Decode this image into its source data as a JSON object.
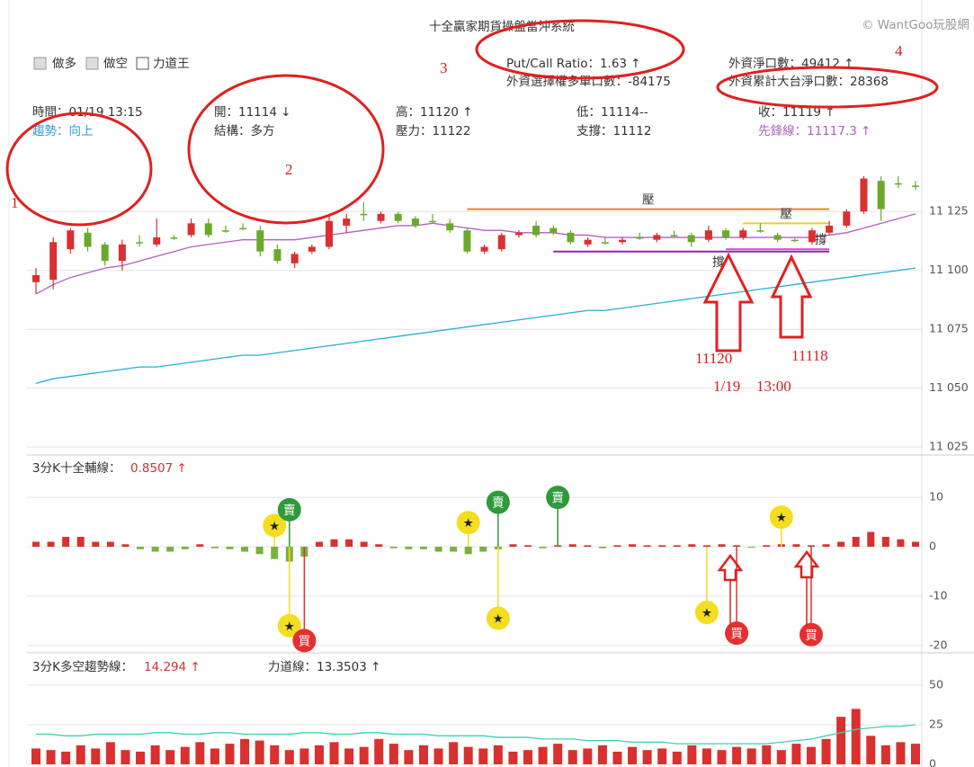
{
  "header": {
    "title": "十全贏家期貨操盤當沖系統",
    "watermark": "© WantGoo玩股網",
    "toggles": [
      "做多",
      "做空",
      "力道王"
    ],
    "put_call": "Put/Call Ratio：1.63 ↑",
    "fii_options": "外資選擇權多單口數：-84175",
    "fii_net": "外資淨口數：49412 ↑",
    "fii_big": "外資累計大台淨口數：28368",
    "row1": [
      "時間：01/19 13:15",
      "開：11114 ↓",
      "高：11120 ↑",
      "低：11114--",
      "收：11119 ↑"
    ],
    "row2": [
      "趨勢：向上",
      "結構：多方",
      "壓力：11122",
      "支撐：11112",
      "先鋒線：11117.3 ↑"
    ]
  },
  "annotations": [
    "1",
    "2",
    "3",
    "4",
    "11120",
    "11118",
    "1/19",
    "13:00"
  ],
  "chart_data": [
    {
      "type": "candlestick",
      "open": [
        11095,
        11096,
        11109,
        11116,
        11111,
        11104,
        11112,
        11111,
        11114,
        11115,
        11120,
        11117,
        11118,
        11117,
        11109,
        11103,
        11108,
        11110,
        11119,
        11124,
        11121,
        11124,
        11122,
        11121,
        11120,
        11117,
        11108,
        11109,
        11115,
        11119,
        11118,
        11116,
        11111,
        11112,
        11112,
        11114,
        11113,
        11115,
        11115,
        11113,
        11117,
        11114,
        11117,
        11115,
        11113,
        11112,
        11116,
        11119,
        11125,
        11138,
        11137,
        11136
      ],
      "high": [
        11101,
        11114,
        11118,
        11118,
        11112,
        11113,
        11115,
        11122,
        11115,
        11122,
        11122,
        11119,
        11120,
        11119,
        11111,
        11108,
        11111,
        11124,
        11124,
        11129,
        11125,
        11125,
        11123,
        11124,
        11122,
        11118,
        11111,
        11116,
        11117,
        11121,
        11119,
        11117,
        11114,
        11114,
        11114,
        11116,
        11116,
        11117,
        11116,
        11119,
        11118,
        11118,
        11120,
        11116,
        11114,
        11118,
        11121,
        11126,
        11140,
        11140,
        11140,
        11138
      ],
      "low": [
        11090,
        11092,
        11107,
        11108,
        11102,
        11100,
        11110,
        11110,
        11113,
        11114,
        11114,
        11116,
        11117,
        11106,
        11103,
        11101,
        11107,
        11109,
        11116,
        11121,
        11120,
        11120,
        11118,
        11120,
        11116,
        11107,
        11107,
        11108,
        11114,
        11114,
        11115,
        11111,
        11110,
        11111,
        11111,
        11113,
        11112,
        11114,
        11110,
        11112,
        11113,
        11113,
        11116,
        11112,
        11112,
        11111,
        11115,
        11118,
        11124,
        11121,
        11135,
        11134
      ],
      "close": [
        11098,
        11112,
        11117,
        11110,
        11104,
        11111,
        11112,
        11114,
        11114,
        11120,
        11115,
        11117,
        11118,
        11108,
        11104,
        11107,
        11110,
        11121,
        11122,
        11124,
        11124,
        11121,
        11119,
        11121,
        11117,
        11108,
        11110,
        11115,
        11116,
        11115,
        11116,
        11112,
        11113,
        11112,
        11113,
        11114,
        11115,
        11115,
        11112,
        11117,
        11114,
        11117,
        11117,
        11113,
        11113,
        11117,
        11119,
        11125,
        11139,
        11126,
        11137,
        11136
      ],
      "lines": [
        {
          "color": "#b060c0",
          "values": [
            11090,
            11094,
            11097,
            11099,
            11101,
            11102,
            11104,
            11106,
            11108,
            11110,
            11111,
            11112,
            11113,
            11113,
            11113,
            11113,
            11114,
            11115,
            11116,
            11117,
            11118,
            11119,
            11119,
            11120,
            11119,
            11118,
            11117,
            11117,
            11116,
            11116,
            11116,
            11115,
            11115,
            11114,
            11114,
            11114,
            11114,
            11114,
            11114,
            11114,
            11114,
            11114,
            11114,
            11114,
            11114,
            11114,
            11115,
            11116,
            11118,
            11120,
            11122,
            11124
          ]
        },
        {
          "color": "#2ab0d0",
          "values": [
            11052,
            11054,
            11055,
            11056,
            11057,
            11058,
            11059,
            11059,
            11060,
            11061,
            11062,
            11063,
            11064,
            11064,
            11065,
            11066,
            11067,
            11068,
            11069,
            11070,
            11071,
            11072,
            11073,
            11074,
            11075,
            11076,
            11077,
            11078,
            11079,
            11080,
            11081,
            11082,
            11083,
            11083,
            11084,
            11085,
            11086,
            11087,
            11088,
            11089,
            11090,
            11091,
            11092,
            11093,
            11094,
            11095,
            11096,
            11097,
            11098,
            11099,
            11100,
            11101
          ]
        }
      ],
      "levels": [
        {
          "label": "壓",
          "value": 11126,
          "color": "#e08a2a",
          "from": 25,
          "to": 46
        },
        {
          "label": "撐",
          "value": 11108,
          "color": "#8e2aa0",
          "from": 30,
          "to": 46
        },
        {
          "label": "壓",
          "value": 11120,
          "color": "#e8d020",
          "from": 41,
          "to": 46
        },
        {
          "label": "撐",
          "value": 11109,
          "color": "#e050d0",
          "from": 40,
          "to": 46
        }
      ],
      "up_color": "#d93030",
      "down_color": "#6aaa2a",
      "ylim": [
        11022,
        11148
      ],
      "yticks": [
        {
          "value": 11125,
          "label": "11 125"
        },
        {
          "value": 11100,
          "label": "11 100"
        },
        {
          "value": 11075,
          "label": "11 075"
        },
        {
          "value": 11050,
          "label": "11 050"
        },
        {
          "value": 11025,
          "label": "11 025"
        }
      ]
    },
    {
      "type": "bar",
      "title": "3分K十全輔線：",
      "reading": "0.8507 ↑",
      "values": [
        1,
        1,
        2,
        2,
        1,
        1,
        0.5,
        -0.5,
        -1,
        -1,
        -0.5,
        0.5,
        -0.3,
        -0.5,
        -1,
        -1.5,
        -2.5,
        -3,
        -2,
        1,
        1.5,
        1.5,
        1,
        0.5,
        -0.3,
        -0.5,
        -0.5,
        -1,
        -1,
        -1.5,
        -1,
        -0.5,
        0.5,
        0.3,
        -0.3,
        0.3,
        0.5,
        0.3,
        -0.3,
        0.3,
        0.5,
        0.3,
        0.3,
        0.3,
        0.5,
        0.3,
        0.5,
        0.3,
        -0.2,
        0.3,
        0.5,
        0.5,
        0.3,
        0.5,
        1,
        2,
        3,
        2,
        1.5,
        1
      ],
      "up_color": "#d93030",
      "down_color": "#7ab040",
      "signals": [
        {
          "label": "★",
          "value": 4.3,
          "at": 16
        },
        {
          "label": "賣",
          "value": 7.5,
          "at": 17
        },
        {
          "label": "★",
          "value": -16,
          "at": 17
        },
        {
          "label": "買",
          "value": -19,
          "at": 18
        },
        {
          "label": "★",
          "value": 4.9,
          "at": 29
        },
        {
          "label": "賣",
          "value": 9,
          "at": 31
        },
        {
          "label": "★",
          "value": -14.5,
          "at": 31
        },
        {
          "label": "賣",
          "value": 10,
          "at": 35
        },
        {
          "label": "★",
          "value": -13.3,
          "at": 45
        },
        {
          "label": "買",
          "value": -17.5,
          "at": 47
        },
        {
          "label": "★",
          "value": 6,
          "at": 50
        },
        {
          "label": "買",
          "value": -17.8,
          "at": 52
        }
      ],
      "signal_colors": {
        "賣": "#2e9a3a",
        "買": "#e53030",
        "★": "#f5dd20"
      },
      "ylim": [
        -21.3,
        18.4
      ],
      "yticks": [
        10,
        0,
        -10,
        -20
      ]
    },
    {
      "type": "bar-line",
      "title": "3分K多空趨勢線：",
      "reading": "14.294 ↑",
      "subtitle": "力道線：13.3503 ↑",
      "values": [
        10,
        9,
        8,
        12,
        10,
        14,
        9,
        8,
        12,
        9,
        11,
        14,
        10,
        13,
        16,
        15,
        12,
        9,
        10,
        12,
        14,
        10,
        11,
        16,
        13,
        9,
        12,
        10,
        14,
        11,
        10,
        12,
        8,
        9,
        11,
        13,
        9,
        10,
        12,
        8,
        11,
        9,
        10,
        8,
        12,
        10,
        9,
        11,
        10,
        12,
        9,
        13,
        11,
        16,
        30,
        35,
        18,
        12,
        14,
        13
      ],
      "color": "#d93030",
      "line": {
        "color": "#40d0b0",
        "values": [
          19,
          19,
          18,
          18,
          19,
          19,
          19,
          19,
          20,
          20,
          19,
          19,
          20,
          20,
          19,
          19,
          19,
          19,
          20,
          20,
          19,
          19,
          20,
          20,
          19,
          19,
          19,
          18,
          18,
          18,
          18,
          17,
          17,
          17,
          16,
          16,
          16,
          15,
          15,
          15,
          14,
          14,
          14,
          13,
          13,
          13,
          13,
          13,
          13,
          13,
          14,
          15,
          16,
          18,
          20,
          22,
          23,
          24,
          24,
          25
        ]
      },
      "ylim": [
        -1.7,
        69.3
      ],
      "yticks": [
        50,
        25,
        0
      ]
    }
  ]
}
